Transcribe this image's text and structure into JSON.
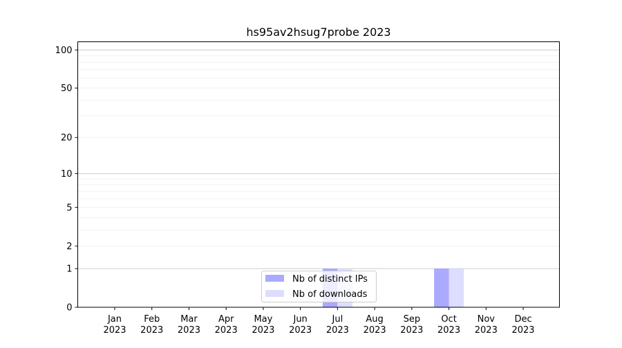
{
  "chart_data": {
    "type": "bar",
    "title": "hs95av2hsug7probe 2023",
    "xlabel": "",
    "ylabel": "",
    "yscale": "log10(1+y)",
    "ylim": [
      0,
      116
    ],
    "yticks": [
      0,
      1,
      2,
      5,
      10,
      20,
      50,
      100
    ],
    "grid": true,
    "legend_position": "bottom-center",
    "categories": [
      "Jan\n2023",
      "Feb\n2023",
      "Mar\n2023",
      "Apr\n2023",
      "May\n2023",
      "Jun\n2023",
      "Jul\n2023",
      "Aug\n2023",
      "Sep\n2023",
      "Oct\n2023",
      "Nov\n2023",
      "Dec\n2023"
    ],
    "series": [
      {
        "name": "Nb of distinct IPs",
        "color": "#aaaaff",
        "values": [
          0,
          0,
          0,
          0,
          0,
          0,
          1,
          0,
          0,
          1,
          0,
          0
        ]
      },
      {
        "name": "Nb of downloads",
        "color": "#ddddff",
        "values": [
          0,
          0,
          0,
          0,
          0,
          0,
          1,
          0,
          0,
          1,
          0,
          0
        ]
      }
    ]
  }
}
